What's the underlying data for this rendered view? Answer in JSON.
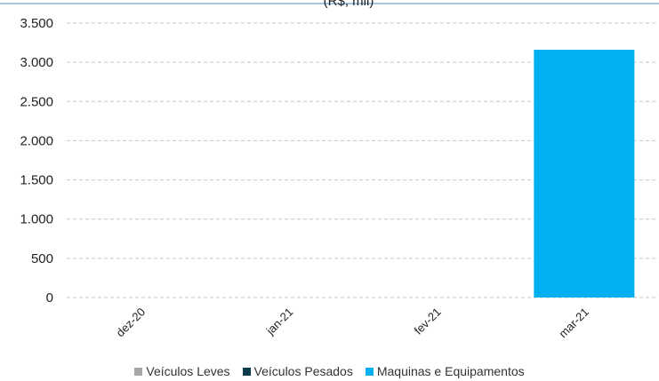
{
  "chart_data": {
    "type": "bar",
    "title_fragment": "(R$, mil)",
    "categories": [
      "dez-20",
      "jan-21",
      "fev-21",
      "mar-21"
    ],
    "series": [
      {
        "name": "Veículos Leves",
        "color": "#a6a6a6",
        "values": [
          0,
          0,
          0,
          0
        ]
      },
      {
        "name": "Veículos Pesados",
        "color": "#0d3b4f",
        "values": [
          0,
          0,
          0,
          0
        ]
      },
      {
        "name": "Maquinas e Equipamentos",
        "color": "#00b0f0",
        "values": [
          0,
          0,
          0,
          3160
        ]
      }
    ],
    "ylim": [
      0,
      3500
    ],
    "yticks": [
      0,
      500,
      1000,
      1500,
      2000,
      2500,
      3000,
      3500
    ],
    "ytick_labels": [
      "0",
      "500",
      "1.000",
      "1.500",
      "2.000",
      "2.500",
      "3.000",
      "3.500"
    ],
    "grid": true,
    "legend_position": "bottom"
  }
}
